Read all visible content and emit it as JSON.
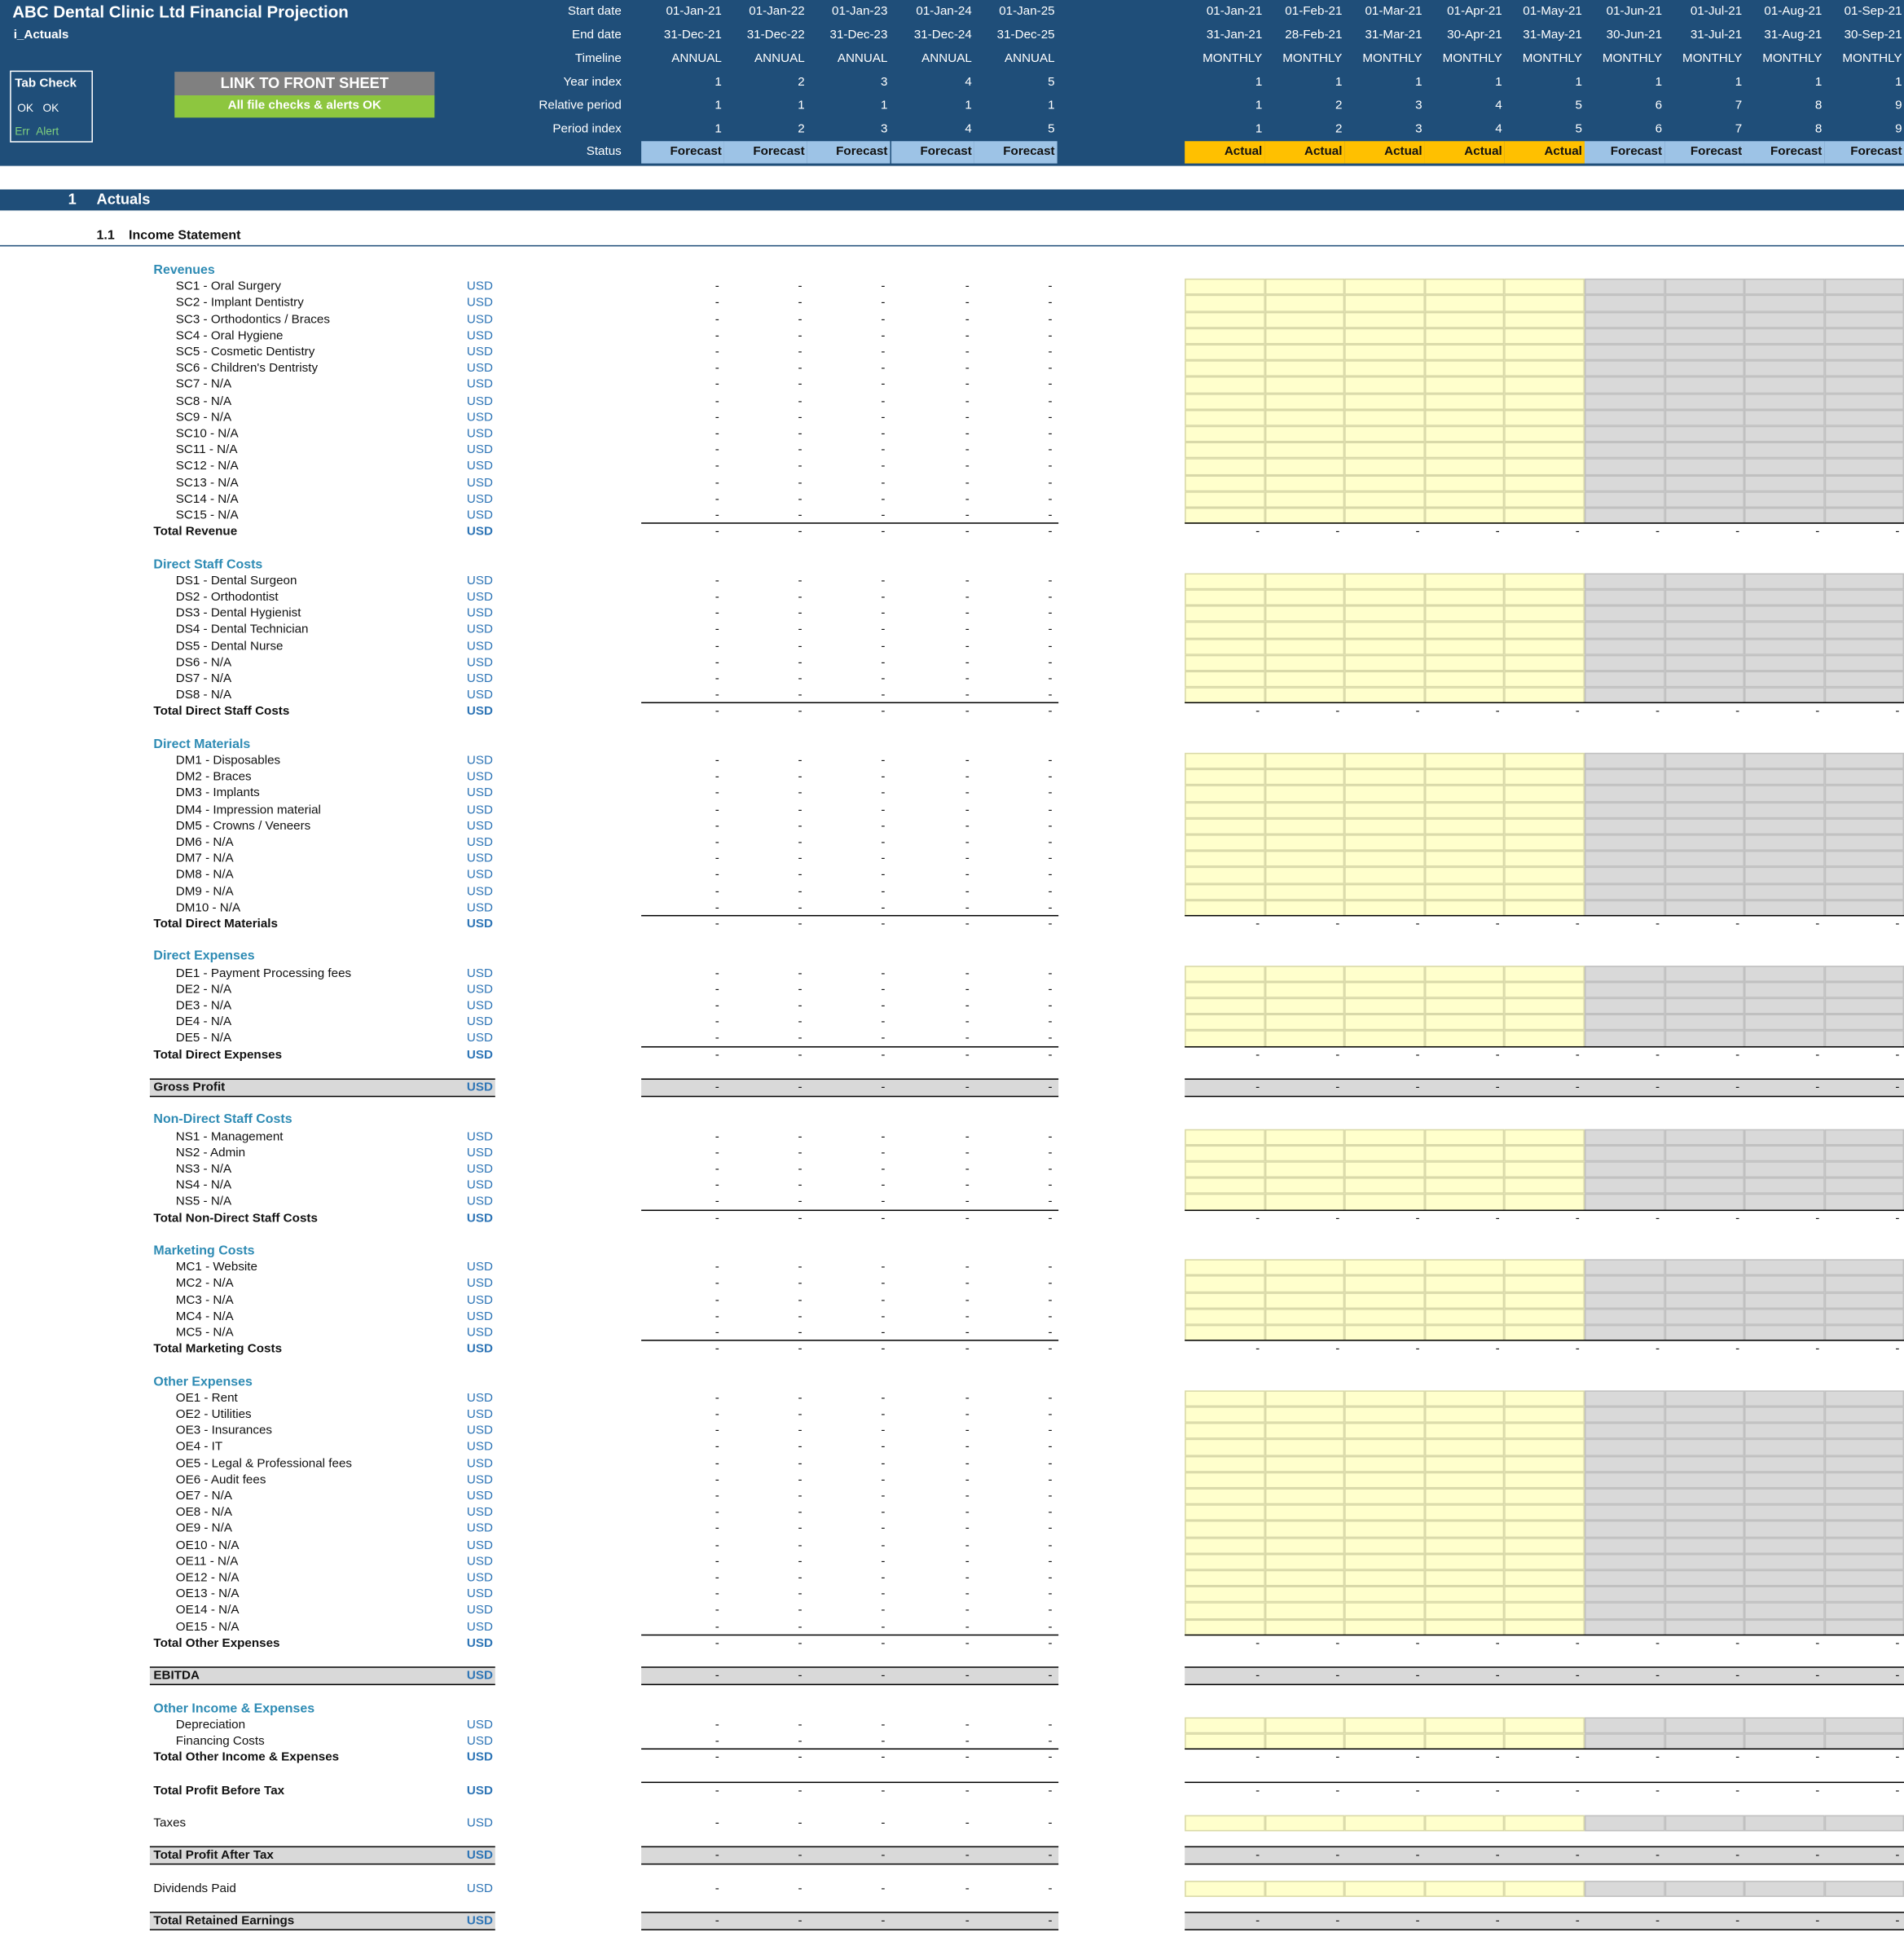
{
  "title": "ABC Dental Clinic Ltd Financial Projection",
  "sheet_name": "i_Actuals",
  "tab_check": {
    "title": "Tab Check",
    "row1": [
      "OK",
      "OK"
    ],
    "row2": [
      "Err",
      "Alert"
    ]
  },
  "link_button": "LINK TO FRONT SHEET",
  "checks_status": "All file checks & alerts OK",
  "header_labels": [
    "Start date",
    "End date",
    "Timeline",
    "Year index",
    "Relative period",
    "Period index",
    "Status"
  ],
  "annual": [
    {
      "start": "01-Jan-21",
      "end": "31-Dec-21",
      "timeline": "ANNUAL",
      "year": "1",
      "rel": "1",
      "period": "1",
      "status": "Forecast"
    },
    {
      "start": "01-Jan-22",
      "end": "31-Dec-22",
      "timeline": "ANNUAL",
      "year": "2",
      "rel": "1",
      "period": "2",
      "status": "Forecast"
    },
    {
      "start": "01-Jan-23",
      "end": "31-Dec-23",
      "timeline": "ANNUAL",
      "year": "3",
      "rel": "1",
      "period": "3",
      "status": "Forecast"
    },
    {
      "start": "01-Jan-24",
      "end": "31-Dec-24",
      "timeline": "ANNUAL",
      "year": "4",
      "rel": "1",
      "period": "4",
      "status": "Forecast"
    },
    {
      "start": "01-Jan-25",
      "end": "31-Dec-25",
      "timeline": "ANNUAL",
      "year": "5",
      "rel": "1",
      "period": "5",
      "status": "Forecast"
    }
  ],
  "monthly": [
    {
      "start": "01-Jan-21",
      "end": "31-Jan-21",
      "timeline": "MONTHLY",
      "year": "1",
      "rel": "1",
      "period": "1",
      "status": "Actual"
    },
    {
      "start": "01-Feb-21",
      "end": "28-Feb-21",
      "timeline": "MONTHLY",
      "year": "1",
      "rel": "2",
      "period": "2",
      "status": "Actual"
    },
    {
      "start": "01-Mar-21",
      "end": "31-Mar-21",
      "timeline": "MONTHLY",
      "year": "1",
      "rel": "3",
      "period": "3",
      "status": "Actual"
    },
    {
      "start": "01-Apr-21",
      "end": "30-Apr-21",
      "timeline": "MONTHLY",
      "year": "1",
      "rel": "4",
      "period": "4",
      "status": "Actual"
    },
    {
      "start": "01-May-21",
      "end": "31-May-21",
      "timeline": "MONTHLY",
      "year": "1",
      "rel": "5",
      "period": "5",
      "status": "Actual"
    },
    {
      "start": "01-Jun-21",
      "end": "30-Jun-21",
      "timeline": "MONTHLY",
      "year": "1",
      "rel": "6",
      "period": "6",
      "status": "Forecast"
    },
    {
      "start": "01-Jul-21",
      "end": "31-Jul-21",
      "timeline": "MONTHLY",
      "year": "1",
      "rel": "7",
      "period": "7",
      "status": "Forecast"
    },
    {
      "start": "01-Aug-21",
      "end": "31-Aug-21",
      "timeline": "MONTHLY",
      "year": "1",
      "rel": "8",
      "period": "8",
      "status": "Forecast"
    },
    {
      "start": "01-Sep-21",
      "end": "30-Sep-21",
      "timeline": "MONTHLY",
      "year": "1",
      "rel": "9",
      "period": "9",
      "status": "Forecast"
    }
  ],
  "section": {
    "num": "1",
    "label": "Actuals"
  },
  "subsection": {
    "num": "1.1",
    "label": "Income Statement"
  },
  "currency": "USD",
  "empty_value": "-",
  "groups": [
    {
      "title": "Revenues",
      "items": [
        "SC1 - Oral Surgery",
        "SC2 - Implant Dentistry",
        "SC3 - Orthodontics / Braces",
        "SC4 - Oral Hygiene",
        "SC5 - Cosmetic Dentistry",
        "SC6 - Children's Dentristy",
        "SC7 - N/A",
        "SC8 - N/A",
        "SC9 - N/A",
        "SC10 - N/A",
        "SC11 - N/A",
        "SC12 - N/A",
        "SC13 - N/A",
        "SC14 - N/A",
        "SC15 - N/A"
      ],
      "total": "Total Revenue"
    },
    {
      "title": "Direct Staff Costs",
      "items": [
        "DS1 - Dental Surgeon",
        "DS2 - Orthodontist",
        "DS3 - Dental Hygienist",
        "DS4 - Dental Technician",
        "DS5 - Dental Nurse",
        "DS6 - N/A",
        "DS7 - N/A",
        "DS8 - N/A"
      ],
      "total": "Total Direct Staff Costs"
    },
    {
      "title": "Direct Materials",
      "items": [
        "DM1 - Disposables",
        "DM2 - Braces",
        "DM3 - Implants",
        "DM4 - Impression material",
        "DM5 - Crowns / Veneers",
        "DM6 - N/A",
        "DM7 - N/A",
        "DM8 - N/A",
        "DM9 - N/A",
        "DM10 - N/A"
      ],
      "total": "Total Direct Materials"
    },
    {
      "title": "Direct Expenses",
      "items": [
        "DE1 - Payment Processing fees",
        "DE2 - N/A",
        "DE3 - N/A",
        "DE4 - N/A",
        "DE5 - N/A"
      ],
      "total": "Total Direct Expenses",
      "after": "Gross Profit"
    },
    {
      "title": "Non-Direct Staff Costs",
      "items": [
        "NS1 - Management",
        "NS2 - Admin",
        "NS3 - N/A",
        "NS4 - N/A",
        "NS5 - N/A"
      ],
      "total": "Total Non-Direct Staff Costs"
    },
    {
      "title": "Marketing Costs",
      "items": [
        "MC1 - Website",
        "MC2 - N/A",
        "MC3 - N/A",
        "MC4 - N/A",
        "MC5 - N/A"
      ],
      "total": "Total Marketing Costs"
    },
    {
      "title": "Other Expenses",
      "items": [
        "OE1 - Rent",
        "OE2 - Utilities",
        "OE3 - Insurances",
        "OE4 - IT",
        "OE5 - Legal & Professional fees",
        "OE6 - Audit fees",
        "OE7 - N/A",
        "OE8 - N/A",
        "OE9 - N/A",
        "OE10 - N/A",
        "OE11 - N/A",
        "OE12 - N/A",
        "OE13 - N/A",
        "OE14 - N/A",
        "OE15 - N/A"
      ],
      "total": "Total Other Expenses",
      "after": "EBITDA"
    },
    {
      "title": "Other Income & Expenses",
      "items": [
        "Depreciation",
        "Financing Costs"
      ],
      "total": "Total Other Income & Expenses"
    }
  ],
  "tail": [
    {
      "label": "Total Profit Before Tax",
      "kind": "total"
    },
    {
      "label": "Taxes",
      "kind": "input"
    },
    {
      "label": "Total Profit After Tax",
      "kind": "highlight"
    },
    {
      "label": "Dividends Paid",
      "kind": "input"
    },
    {
      "label": "Total Retained Earnings",
      "kind": "highlight"
    }
  ]
}
